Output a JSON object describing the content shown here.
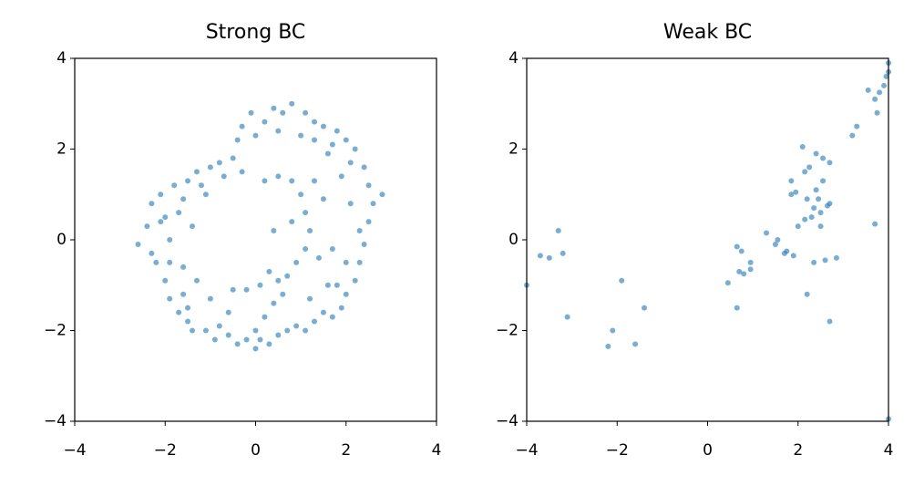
{
  "chart_data": [
    {
      "type": "scatter",
      "title": "Strong BC",
      "color": "#1f77b4",
      "x": [
        -2.6,
        -2.4,
        -2.3,
        -2.2,
        -2.1,
        -2.0,
        -2.0,
        -1.9,
        -1.8,
        -1.7,
        -1.6,
        -1.5,
        -1.5,
        -1.4,
        -1.3,
        -1.2,
        -1.1,
        -1.0,
        -0.9,
        -0.8,
        -0.6,
        -0.5,
        -0.4,
        -0.2,
        0.0,
        0.1,
        0.3,
        0.5,
        0.7,
        0.9,
        1.1,
        1.3,
        1.5,
        1.7,
        1.9,
        2.0,
        2.2,
        2.3,
        2.4,
        2.5,
        2.6,
        2.5,
        2.4,
        2.2,
        2.0,
        1.8,
        1.5,
        1.3,
        1.1,
        0.8,
        0.6,
        0.4,
        0.2,
        -0.1,
        -0.3,
        -0.4,
        0.0,
        2.8,
        2.1,
        2.3,
        1.7,
        -1.7,
        -1.4,
        -1.9,
        -1.6,
        -1.3,
        -1.6,
        -1.0,
        -0.3,
        0.2,
        0.5,
        0.8,
        1.0,
        1.1,
        1.2,
        1.1,
        0.9,
        0.7,
        0.5,
        0.3,
        0.1,
        -0.2,
        -0.5,
        0.6,
        1.4,
        1.5,
        1.3,
        0.4,
        0.8,
        1.7,
        -0.6,
        0.2,
        0.4,
        1.6,
        1.2,
        -2.3,
        -2.1,
        -1.1,
        0.5,
        1.0,
        1.3,
        1.6,
        1.9,
        2.1,
        2.0,
        1.8,
        0.0,
        -0.8,
        -1.5,
        -1.9,
        -0.7
      ],
      "values": [
        -0.1,
        0.3,
        0.8,
        -0.5,
        1.0,
        0.5,
        -0.9,
        -1.3,
        1.2,
        -1.6,
        0.9,
        1.3,
        -1.8,
        -2.0,
        1.5,
        1.2,
        -2.0,
        1.6,
        -2.2,
        1.7,
        -2.1,
        1.8,
        -2.3,
        -2.2,
        -2.4,
        -2.2,
        -2.3,
        -2.1,
        -2.0,
        -1.9,
        -2.0,
        -1.8,
        -1.6,
        -1.7,
        -1.5,
        -1.2,
        -0.9,
        -0.5,
        -0.1,
        0.4,
        0.8,
        1.2,
        1.6,
        2.0,
        2.2,
        2.4,
        2.5,
        2.6,
        2.8,
        3.0,
        2.8,
        2.9,
        2.6,
        2.8,
        2.5,
        2.2,
        2.3,
        1.0,
        1.7,
        0.2,
        2.1,
        0.6,
        0.3,
        0.0,
        -0.6,
        -0.9,
        -1.2,
        -1.3,
        1.5,
        1.3,
        1.4,
        1.3,
        1.0,
        0.6,
        0.2,
        -0.2,
        -0.5,
        -0.8,
        -0.9,
        -0.7,
        -1.0,
        -1.1,
        -1.1,
        -1.2,
        -0.4,
        0.9,
        1.3,
        0.2,
        0.4,
        -0.2,
        -1.6,
        -1.7,
        -1.4,
        -1.0,
        -1.3,
        -0.3,
        0.4,
        1.0,
        2.4,
        2.3,
        2.2,
        1.9,
        1.4,
        0.8,
        -0.5,
        -1.0,
        -2.0,
        -1.9,
        -1.5,
        -0.5,
        1.4
      ],
      "xlim": [
        -4,
        4
      ],
      "ylim": [
        -4,
        4
      ],
      "xticks": [
        {
          "value": -4,
          "label": "−4"
        },
        {
          "value": -2,
          "label": "−2"
        },
        0,
        2,
        4
      ],
      "yticks": [
        {
          "value": -4,
          "label": "−4"
        },
        {
          "value": -2,
          "label": "−2"
        },
        0,
        2,
        4
      ]
    },
    {
      "type": "scatter",
      "title": "Weak BC",
      "color": "#1f77b4",
      "x": [
        -4,
        -3.7,
        -3.5,
        -3.3,
        -3.2,
        -3.1,
        -2.2,
        -2.1,
        -1.9,
        -1.6,
        -1.4,
        0.45,
        0.65,
        0.65,
        0.7,
        0.75,
        0.8,
        0.95,
        0.95,
        1.3,
        1.5,
        1.55,
        1.7,
        1.75,
        1.9,
        1.85,
        1.95,
        1.85,
        2.0,
        2.1,
        2.15,
        2.15,
        2.2,
        2.25,
        2.3,
        2.35,
        2.35,
        2.4,
        2.4,
        2.45,
        2.5,
        2.5,
        2.55,
        2.55,
        2.6,
        2.65,
        2.7,
        2.7,
        2.7,
        2.85,
        2.2,
        3.2,
        3.3,
        3.55,
        3.7,
        3.75,
        3.8,
        3.9,
        3.95,
        4.0,
        4.0,
        3.7,
        4.0
      ],
      "values": [
        -1,
        -0.35,
        -0.4,
        0.2,
        -0.3,
        -1.7,
        -2.35,
        -2.0,
        -0.9,
        -2.3,
        -1.5,
        -0.95,
        -1.5,
        -0.15,
        -0.7,
        -0.25,
        -0.75,
        -0.65,
        -0.5,
        0.15,
        -0.1,
        0.0,
        -0.3,
        -0.25,
        -0.35,
        1.0,
        1.05,
        1.3,
        0.3,
        2.05,
        0.45,
        1.5,
        0.9,
        1.6,
        0.5,
        0.7,
        -0.5,
        1.9,
        1.1,
        0.9,
        0.6,
        0.3,
        1.3,
        1.8,
        -0.45,
        0.75,
        1.7,
        -1.8,
        0.8,
        -0.4,
        -1.2,
        2.3,
        2.5,
        3.3,
        3.1,
        2.8,
        3.25,
        3.4,
        3.6,
        3.9,
        3.7,
        0.35,
        -3.95
      ],
      "xlim": [
        -4,
        4
      ],
      "ylim": [
        -4,
        4
      ],
      "xticks": [
        {
          "value": -4,
          "label": "−4"
        },
        {
          "value": -2,
          "label": "−2"
        },
        0,
        2,
        4
      ],
      "yticks": [
        {
          "value": -4,
          "label": "−4"
        },
        {
          "value": -2,
          "label": "−2"
        },
        0,
        2,
        4
      ]
    }
  ]
}
